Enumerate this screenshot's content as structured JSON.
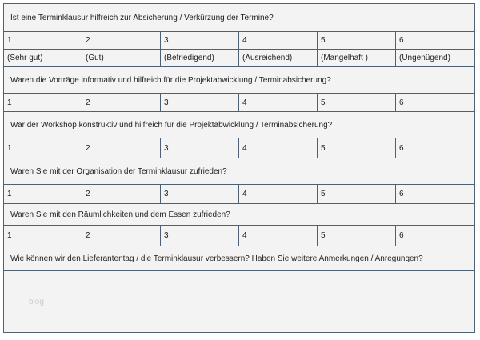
{
  "questions": [
    "Ist eine Terminklausur hilfreich zur Absicherung / Verkürzung der Termine?",
    "Waren die Vorträge informativ und hilfreich für die Projektabwicklung / Terminabsicherung?",
    "War der Workshop konstruktiv und hilfreich für die Projektabwicklung / Terminabsicherung?",
    "Waren Sie mit der Organisation der Terminklausur zufrieden?",
    "Waren Sie mit den Räumlichkeiten und dem Essen zufrieden?",
    "Wie können wir den Lieferantentag / die Terminklausur verbessern? Haben Sie weitere Anmerkungen / Anregungen?"
  ],
  "grades": [
    "1",
    "2",
    "3",
    "4",
    "5",
    "6"
  ],
  "grade_labels": [
    "(Sehr gut)",
    "(Gut)",
    "(Befriedigend)",
    "(Ausreichend)",
    "(Mangelhaft )",
    "(Ungenügend)"
  ],
  "watermark": "blog"
}
